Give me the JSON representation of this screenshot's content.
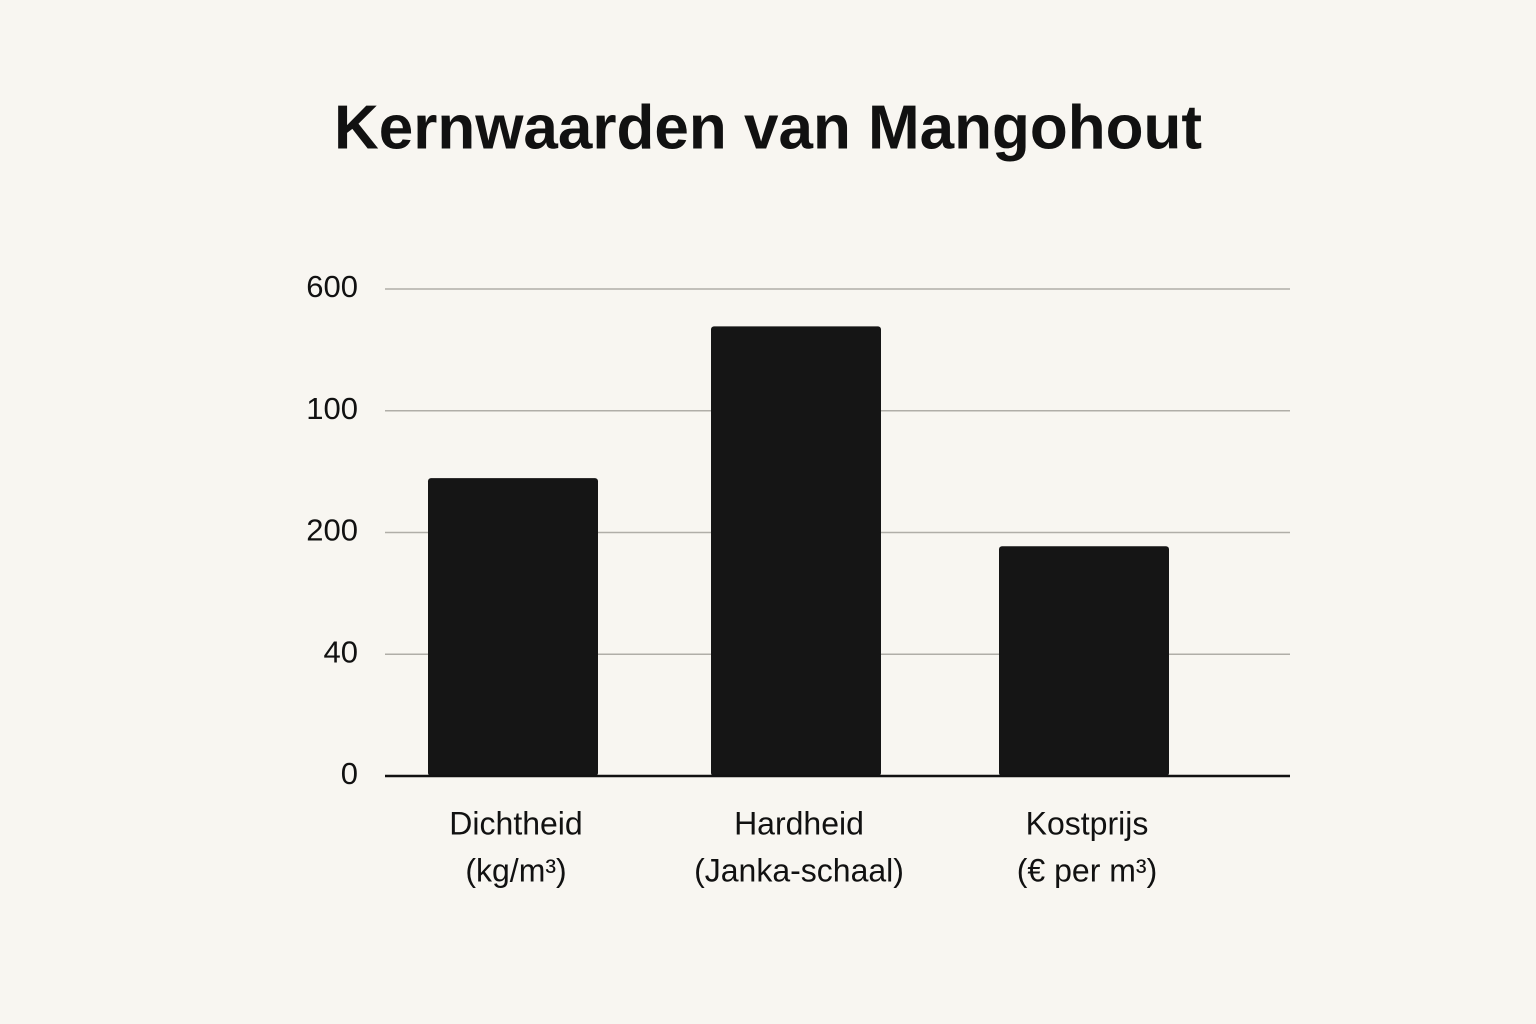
{
  "chart_data": {
    "type": "bar",
    "title": "Kernwaarden van Mangohout",
    "categories": [
      [
        "Dichtheid",
        "(kg/m³)"
      ],
      [
        "Hardheid",
        "(Janka-schaal)"
      ],
      [
        "Kostprijs",
        "(€ per m³)"
      ]
    ],
    "values": [
      367,
      554,
      283
    ],
    "color": "#151515",
    "ylim": [
      0,
      600
    ],
    "yticks": [
      0,
      {
        "value": 150,
        "label": "40"
      },
      {
        "value": 300,
        "label": "200"
      },
      {
        "value": 450,
        "label": "100"
      },
      600
    ],
    "grid": true
  }
}
